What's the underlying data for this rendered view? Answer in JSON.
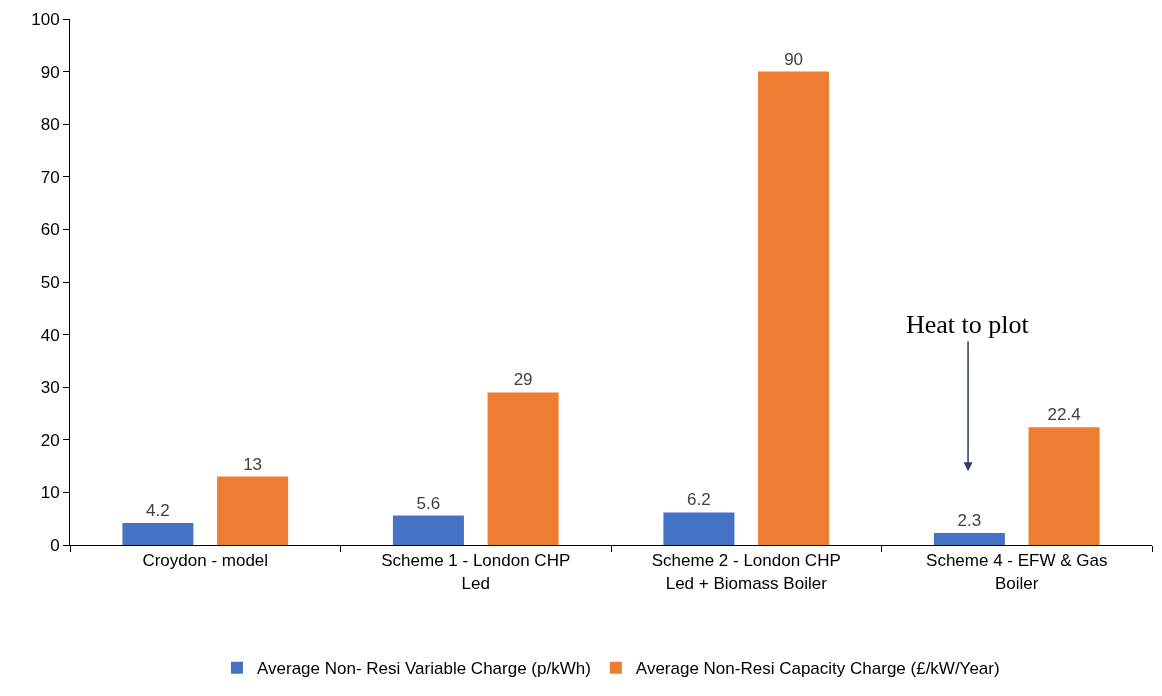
{
  "chart_data": {
    "type": "bar",
    "categories": [
      "Croydon - model",
      "Scheme 1 - London CHP\nLed",
      "Scheme 2 - London CHP\nLed + Biomass Boiler",
      "Scheme 4 - EFW & Gas\nBoiler"
    ],
    "series": [
      {
        "name": "Average Non- Resi Variable Charge (p/kWh)",
        "color": "#4472c4",
        "values": [
          4.2,
          5.6,
          6.2,
          2.3
        ]
      },
      {
        "name": "Average Non-Resi Capacity Charge (£/kW/Year)",
        "color": "#ed7d31",
        "values": [
          13,
          29,
          90,
          22.4
        ]
      }
    ],
    "ylim": [
      0,
      100
    ],
    "yticks": [
      0,
      10,
      20,
      30,
      40,
      50,
      60,
      70,
      80,
      90,
      100
    ],
    "grid": false,
    "legend": "bottom",
    "data_labels": true,
    "annotations": [
      "Heat to plot"
    ]
  }
}
